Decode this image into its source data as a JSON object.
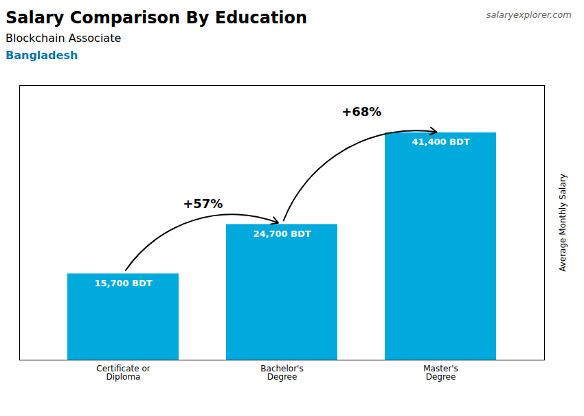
{
  "chart_data": {
    "type": "bar",
    "title": "Salary Comparison By Education",
    "subtitle": [
      "Blockchain Associate",
      "Bangladesh"
    ],
    "source": "salaryexplorer.com",
    "ylabel": "Average Monthly Salary",
    "categories": [
      "Certificate or\nDiploma",
      "Bachelor's\nDegree",
      "Master's\nDegree"
    ],
    "values": [
      15700,
      24700,
      41400
    ],
    "value_labels": [
      "15,700 BDT",
      "24,700 BDT",
      "41,400 BDT"
    ],
    "data_labels": true,
    "color": "#00aadd",
    "ylim": [
      0,
      50000
    ],
    "grid": false,
    "tick_labels": "x",
    "annotations": [
      {
        "text": "+57%",
        "from": "Certificate or\nDiploma",
        "to": "Bachelor's\nDegree"
      },
      {
        "text": "+68%",
        "from": "Bachelor's\nDegree",
        "to": "Master's\nDegree"
      }
    ]
  }
}
